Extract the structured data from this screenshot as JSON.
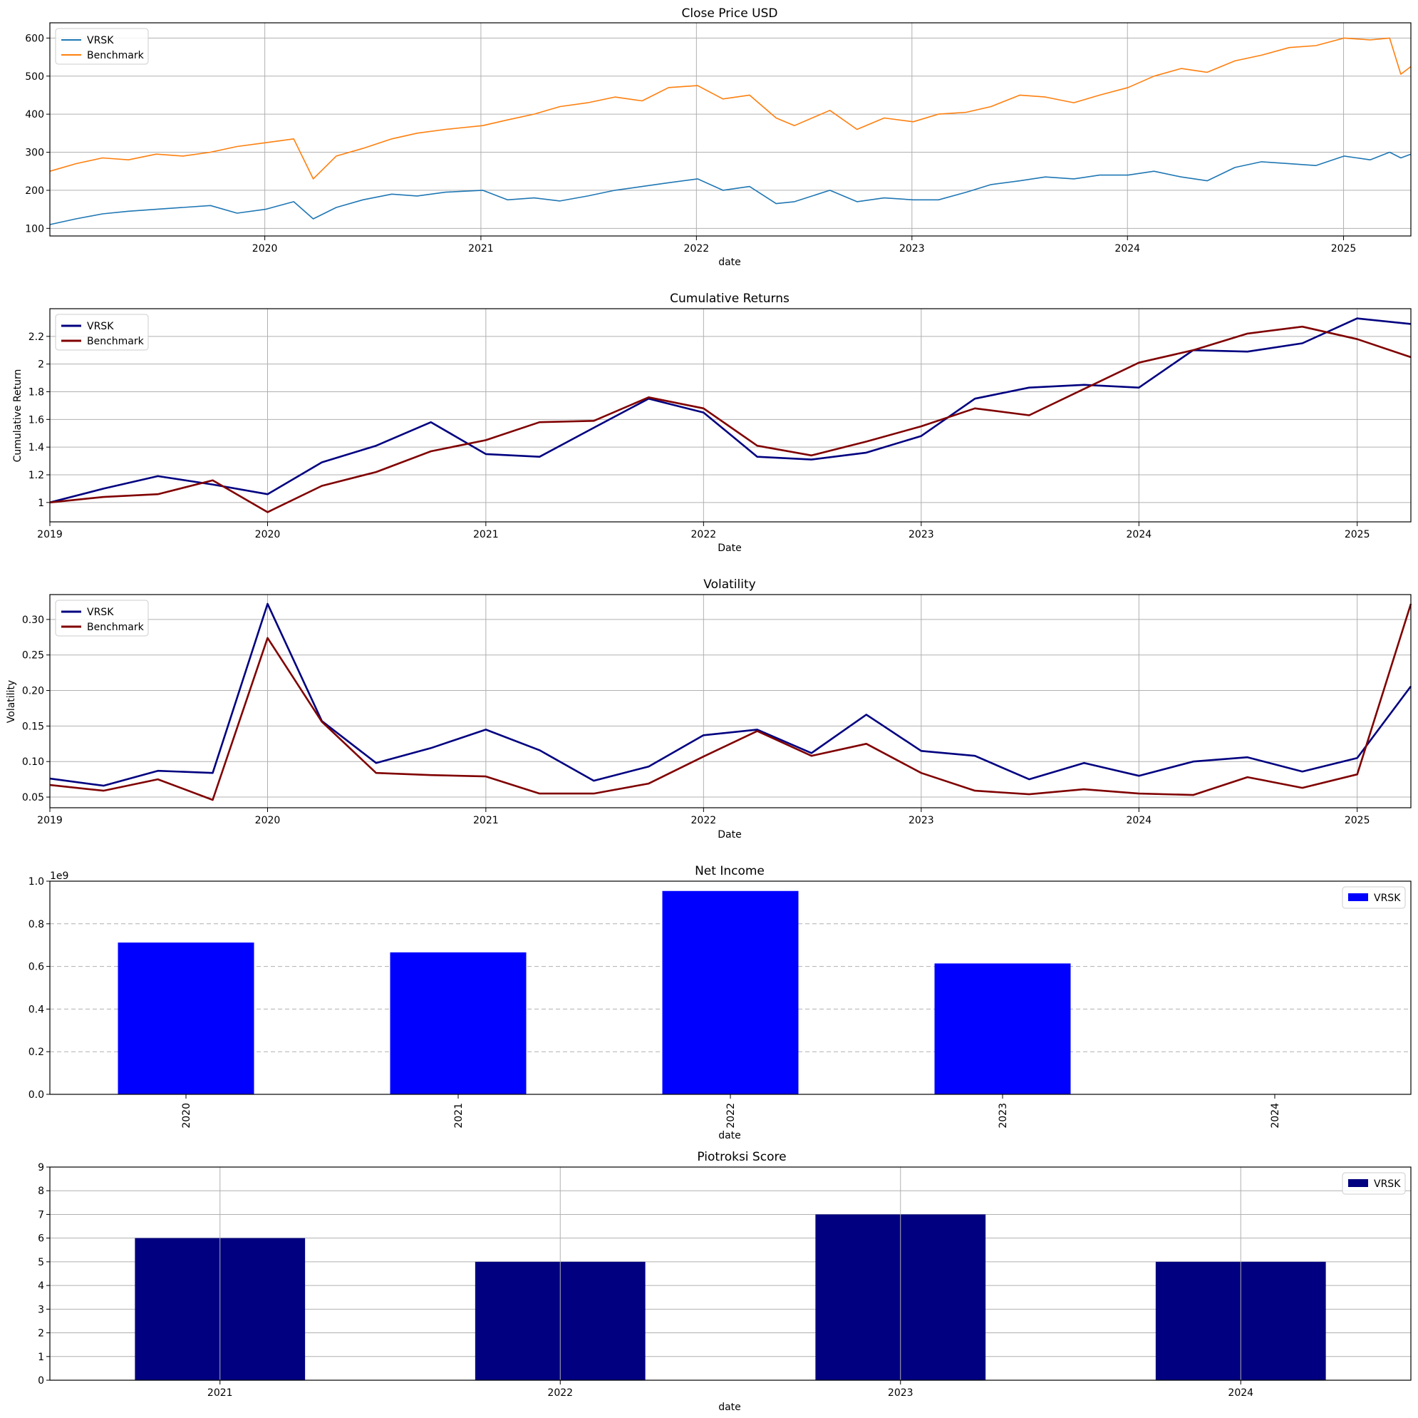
{
  "chart_data": [
    {
      "type": "line",
      "title": "Close Price USD",
      "xlabel": "date",
      "ylabel": "",
      "ylim": [
        80,
        640
      ],
      "xlim": [
        "2019-01-02",
        "2025-04-25"
      ],
      "yticks": [
        100,
        200,
        300,
        400,
        500,
        600
      ],
      "xtick_labels": [
        "2020",
        "2021",
        "2022",
        "2023",
        "2024",
        "2025"
      ],
      "xtick_dates": [
        "2020-01-01",
        "2021-01-01",
        "2022-01-01",
        "2023-01-01",
        "2024-01-01",
        "2025-01-01"
      ],
      "grid": true,
      "legend": "top-left",
      "colors": [
        "#1f77b4",
        "#ff7f0e"
      ],
      "x": [
        "2019-01-02",
        "2019-02-15",
        "2019-04-01",
        "2019-05-15",
        "2019-07-01",
        "2019-08-15",
        "2019-10-01",
        "2019-11-15",
        "2020-01-02",
        "2020-02-19",
        "2020-03-23",
        "2020-05-01",
        "2020-06-15",
        "2020-08-03",
        "2020-09-15",
        "2020-11-02",
        "2021-01-04",
        "2021-02-15",
        "2021-04-01",
        "2021-05-15",
        "2021-07-01",
        "2021-08-16",
        "2021-10-01",
        "2021-11-15",
        "2022-01-03",
        "2022-02-15",
        "2022-04-01",
        "2022-05-16",
        "2022-06-16",
        "2022-08-15",
        "2022-09-30",
        "2022-11-15",
        "2023-01-03",
        "2023-02-15",
        "2023-04-03",
        "2023-05-15",
        "2023-07-03",
        "2023-08-15",
        "2023-10-02",
        "2023-11-15",
        "2024-01-02",
        "2024-02-15",
        "2024-04-01",
        "2024-05-15",
        "2024-07-01",
        "2024-08-15",
        "2024-10-01",
        "2024-11-15",
        "2025-01-02",
        "2025-02-15",
        "2025-03-20",
        "2025-04-08",
        "2025-04-25"
      ],
      "series": [
        {
          "name": "VRSK",
          "values": [
            110,
            125,
            138,
            145,
            150,
            155,
            160,
            140,
            150,
            170,
            125,
            155,
            175,
            190,
            185,
            195,
            200,
            175,
            180,
            172,
            185,
            200,
            210,
            220,
            230,
            200,
            210,
            165,
            170,
            200,
            170,
            180,
            175,
            175,
            195,
            215,
            225,
            235,
            230,
            240,
            240,
            250,
            235,
            225,
            260,
            275,
            270,
            265,
            290,
            280,
            300,
            285,
            295
          ]
        },
        {
          "name": "Benchmark",
          "values": [
            250,
            270,
            285,
            280,
            295,
            290,
            300,
            315,
            325,
            335,
            230,
            290,
            310,
            335,
            350,
            360,
            370,
            385,
            400,
            420,
            430,
            445,
            435,
            470,
            475,
            440,
            450,
            390,
            370,
            410,
            360,
            390,
            380,
            400,
            405,
            420,
            450,
            445,
            430,
            450,
            470,
            500,
            520,
            510,
            540,
            555,
            575,
            580,
            600,
            595,
            600,
            505,
            525
          ]
        }
      ]
    },
    {
      "type": "line",
      "title": "Cumulative Returns",
      "xlabel": "Date",
      "ylabel": "Cumulative Return",
      "ylim": [
        0.86,
        2.4
      ],
      "xlim": [
        "2019-01-01",
        "2025-04-01"
      ],
      "yticks": [
        1.0,
        1.2,
        1.4,
        1.6,
        1.8,
        2.0,
        2.2
      ],
      "xtick_labels": [
        "2019",
        "2020",
        "2021",
        "2022",
        "2023",
        "2024",
        "2025"
      ],
      "xtick_dates": [
        "2019-01-01",
        "2020-01-01",
        "2021-01-01",
        "2022-01-01",
        "2023-01-01",
        "2024-01-01",
        "2025-01-01"
      ],
      "grid": true,
      "legend": "top-left",
      "colors": [
        "#000080",
        "#800000"
      ],
      "x": [
        "2019-01-01",
        "2019-04-01",
        "2019-07-01",
        "2019-10-01",
        "2020-01-01",
        "2020-04-01",
        "2020-07-01",
        "2020-10-01",
        "2021-01-01",
        "2021-04-01",
        "2021-07-01",
        "2021-10-01",
        "2022-01-01",
        "2022-04-01",
        "2022-07-01",
        "2022-10-01",
        "2023-01-01",
        "2023-04-01",
        "2023-07-01",
        "2023-10-01",
        "2024-01-01",
        "2024-04-01",
        "2024-07-01",
        "2024-10-01",
        "2025-01-01",
        "2025-04-01"
      ],
      "series": [
        {
          "name": "VRSK",
          "values": [
            1.0,
            1.1,
            1.19,
            1.13,
            1.06,
            1.29,
            1.41,
            1.58,
            1.35,
            1.33,
            1.54,
            1.75,
            1.65,
            1.33,
            1.31,
            1.36,
            1.48,
            1.75,
            1.83,
            1.85,
            1.83,
            2.1,
            2.09,
            2.15,
            2.33,
            2.29
          ]
        },
        {
          "name": "Benchmark",
          "values": [
            1.0,
            1.04,
            1.06,
            1.16,
            0.93,
            1.12,
            1.22,
            1.37,
            1.45,
            1.58,
            1.59,
            1.76,
            1.68,
            1.41,
            1.34,
            1.44,
            1.55,
            1.68,
            1.63,
            1.82,
            2.01,
            2.1,
            2.22,
            2.27,
            2.18,
            2.05
          ]
        }
      ]
    },
    {
      "type": "line",
      "title": "Volatility",
      "xlabel": "Date",
      "ylabel": "Volatility",
      "ylim": [
        0.035,
        0.335
      ],
      "xlim": [
        "2019-01-01",
        "2025-04-01"
      ],
      "yticks": [
        0.05,
        0.1,
        0.15,
        0.2,
        0.25,
        0.3
      ],
      "ytick_labels": [
        "0.05",
        "0.10",
        "0.15",
        "0.20",
        "0.25",
        "0.30"
      ],
      "xtick_labels": [
        "2019",
        "2020",
        "2021",
        "2022",
        "2023",
        "2024",
        "2025"
      ],
      "xtick_dates": [
        "2019-01-01",
        "2020-01-01",
        "2021-01-01",
        "2022-01-01",
        "2023-01-01",
        "2024-01-01",
        "2025-01-01"
      ],
      "grid": true,
      "legend": "top-left",
      "colors": [
        "#000080",
        "#800000"
      ],
      "x": [
        "2019-01-01",
        "2019-04-01",
        "2019-07-01",
        "2019-10-01",
        "2020-01-01",
        "2020-04-01",
        "2020-07-01",
        "2020-10-01",
        "2021-01-01",
        "2021-04-01",
        "2021-07-01",
        "2021-10-01",
        "2022-01-01",
        "2022-04-01",
        "2022-07-01",
        "2022-10-01",
        "2023-01-01",
        "2023-04-01",
        "2023-07-01",
        "2023-10-01",
        "2024-01-01",
        "2024-04-01",
        "2024-07-01",
        "2024-10-01",
        "2025-01-01",
        "2025-04-01"
      ],
      "series": [
        {
          "name": "VRSK",
          "values": [
            0.076,
            0.066,
            0.087,
            0.084,
            0.322,
            0.157,
            0.098,
            0.119,
            0.145,
            0.116,
            0.073,
            0.093,
            0.137,
            0.145,
            0.112,
            0.166,
            0.115,
            0.108,
            0.075,
            0.098,
            0.08,
            0.1,
            0.106,
            0.086,
            0.105,
            0.206
          ]
        },
        {
          "name": "Benchmark",
          "values": [
            0.067,
            0.059,
            0.075,
            0.046,
            0.274,
            0.156,
            0.084,
            0.081,
            0.079,
            0.055,
            0.055,
            0.069,
            0.107,
            0.143,
            0.108,
            0.125,
            0.084,
            0.059,
            0.054,
            0.061,
            0.055,
            0.053,
            0.078,
            0.063,
            0.082,
            0.322
          ]
        }
      ]
    },
    {
      "type": "bar",
      "title": "Net Income",
      "xlabel": "date",
      "ylabel": "",
      "offset_label": "1e9",
      "ylim": [
        0,
        1.0
      ],
      "yticks": [
        0.0,
        0.2,
        0.4,
        0.6,
        0.8,
        1.0
      ],
      "ytick_labels": [
        "0.0",
        "0.2",
        "0.4",
        "0.6",
        "0.8",
        "1.0"
      ],
      "categories": [
        "2020",
        "2021",
        "2022",
        "2023",
        "2024"
      ],
      "series": [
        {
          "name": "VRSK",
          "values": [
            0.712,
            0.666,
            0.954,
            0.614,
            0
          ]
        }
      ],
      "grid": true,
      "legend": "top-right",
      "colors": [
        "#0000ff"
      ]
    },
    {
      "type": "bar",
      "title": "Piotroksi Score",
      "xlabel": "date",
      "ylabel": "",
      "ylim": [
        0,
        9
      ],
      "yticks": [
        0,
        1,
        2,
        3,
        4,
        5,
        6,
        7,
        8,
        9
      ],
      "categories": [
        "2021",
        "2022",
        "2023",
        "2024"
      ],
      "series": [
        {
          "name": "VRSK",
          "values": [
            6,
            5,
            7,
            5
          ]
        }
      ],
      "grid": true,
      "legend": "top-right",
      "colors": [
        "#000080"
      ]
    }
  ]
}
